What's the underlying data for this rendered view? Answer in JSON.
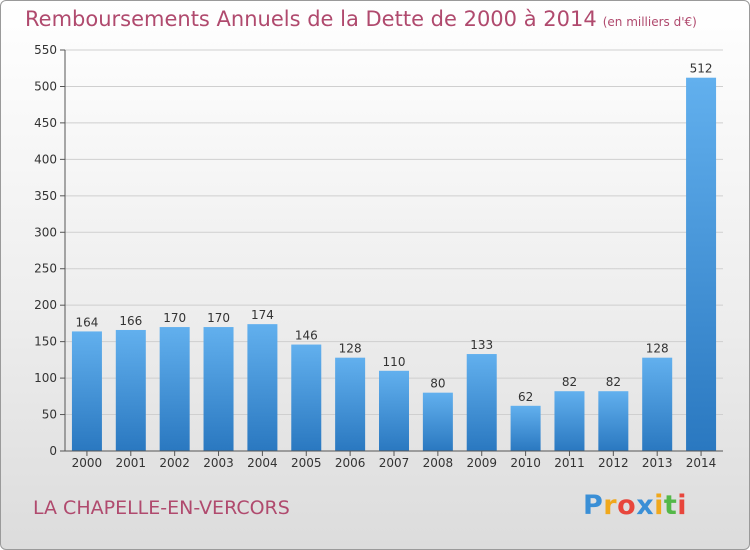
{
  "chart_data": {
    "type": "bar",
    "title": "Remboursements Annuels de la Dette de 2000 à 2014",
    "subtitle": "(en milliers d'€)",
    "categories": [
      "2000",
      "2001",
      "2002",
      "2003",
      "2004",
      "2005",
      "2006",
      "2007",
      "2008",
      "2009",
      "2010",
      "2011",
      "2012",
      "2013",
      "2014"
    ],
    "values": [
      164,
      166,
      170,
      170,
      174,
      146,
      128,
      110,
      80,
      133,
      62,
      82,
      82,
      128,
      512
    ],
    "yticks": [
      0,
      50,
      100,
      150,
      200,
      250,
      300,
      350,
      400,
      450,
      500,
      550
    ],
    "ylim": [
      0,
      550
    ],
    "grid": true,
    "xlabel": "",
    "ylabel": ""
  },
  "location": "LA CHAPELLE-EN-VERCORS",
  "brand": {
    "letters": [
      "P",
      "r",
      "o",
      "x",
      "i",
      "t",
      "i"
    ],
    "colors": [
      "#3a8fd6",
      "#f0a81c",
      "#e8463c",
      "#3a8fd6",
      "#f0a81c",
      "#54b848",
      "#e8463c"
    ]
  },
  "colors": {
    "title": "#b04a6e",
    "bar_top": "#62b0ee",
    "bar_bottom": "#2a78c0",
    "grid": "#cfcfcf"
  }
}
